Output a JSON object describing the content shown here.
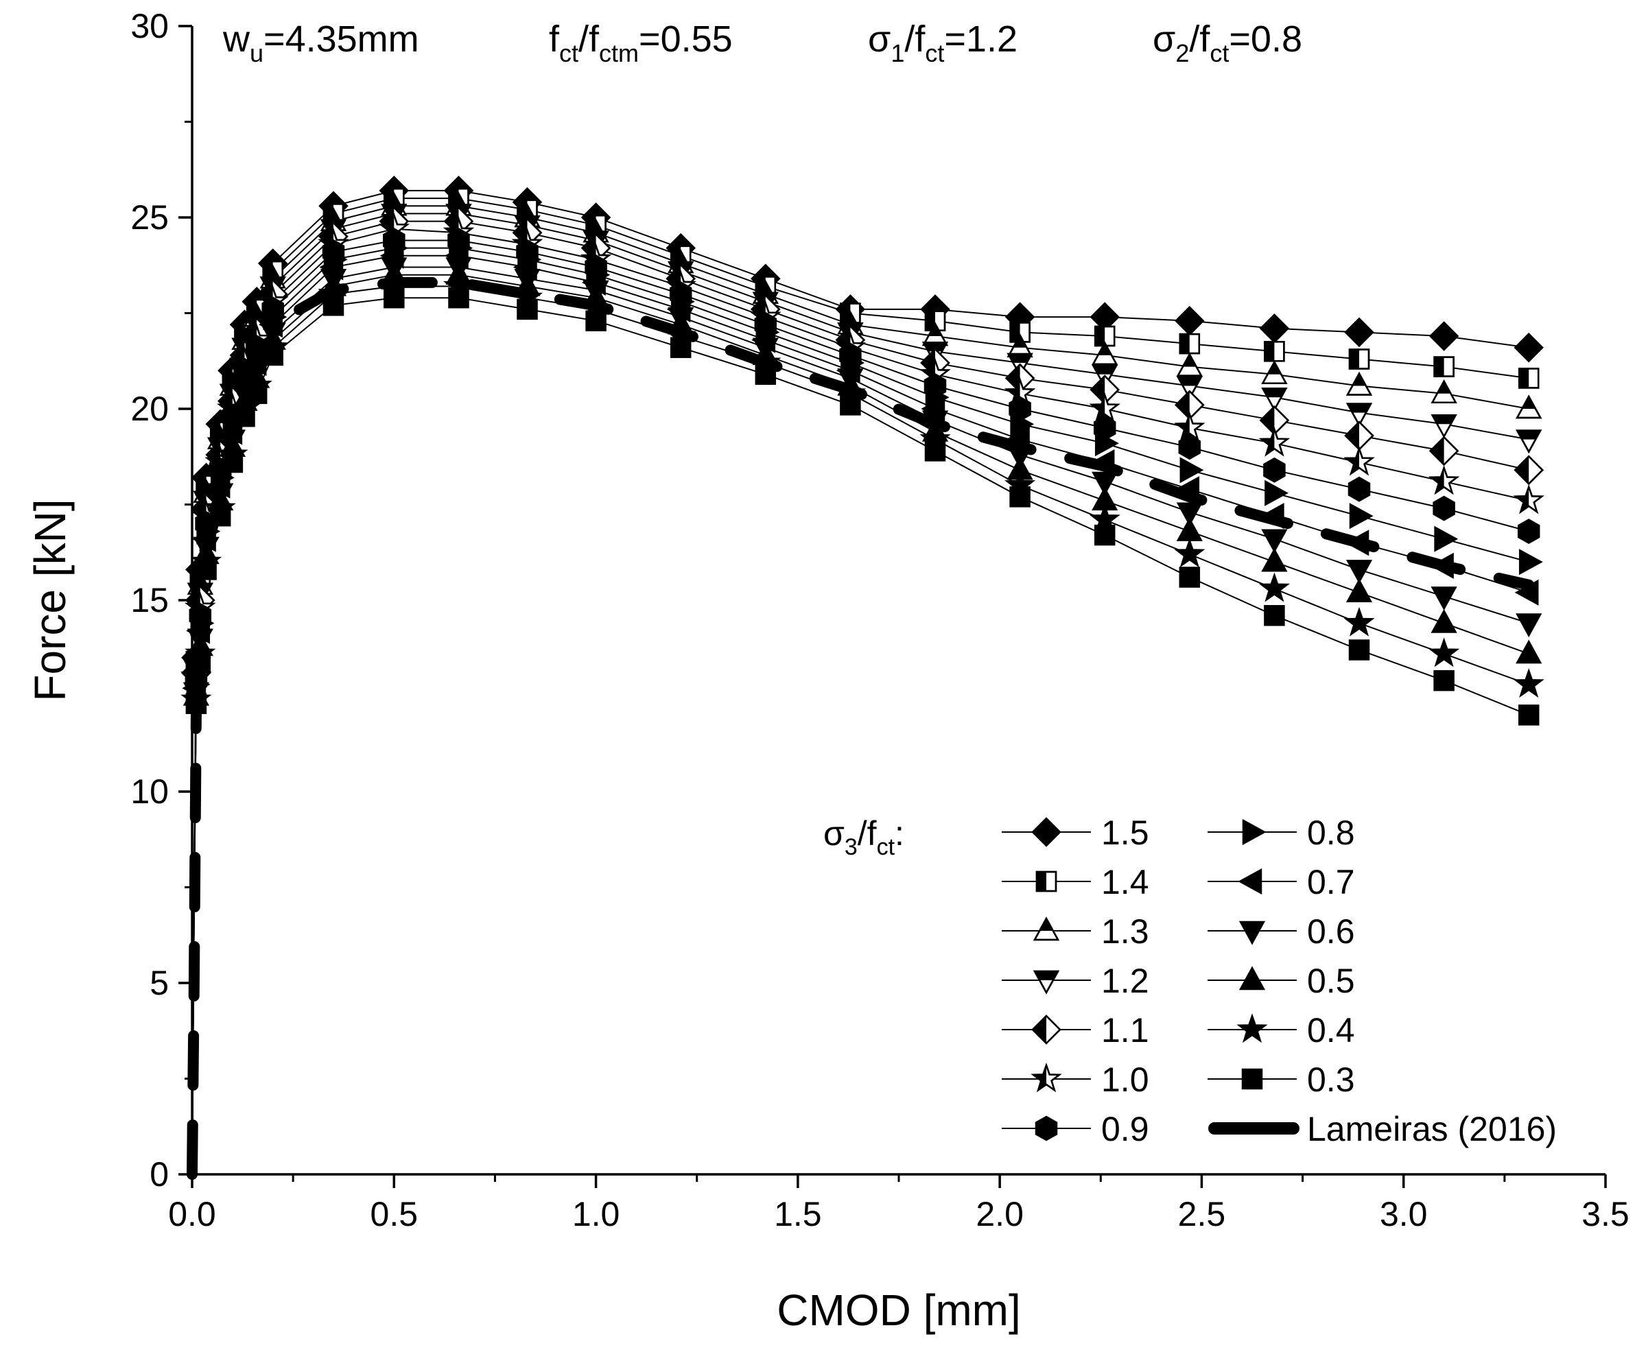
{
  "chart_data": {
    "type": "line",
    "title": "",
    "xlabel": "CMOD [mm]",
    "ylabel": "Force [kN]",
    "xlim": [
      0,
      3.5
    ],
    "ylim": [
      0,
      30
    ],
    "xticks": [
      0.0,
      0.5,
      1.0,
      1.5,
      2.0,
      2.5,
      3.0,
      3.5
    ],
    "xtick_labels": [
      "0.0",
      "0.5",
      "1.0",
      "1.5",
      "2.0",
      "2.5",
      "3.0",
      "3.5"
    ],
    "yticks": [
      0,
      5,
      10,
      15,
      20,
      25,
      30
    ],
    "ytick_labels": [
      "0",
      "5",
      "10",
      "15",
      "20",
      "25",
      "30"
    ],
    "grid": false,
    "legend_position": "bottom-right",
    "legend_title": "σ3/fct:",
    "annotations": [
      {
        "id": "wu",
        "base": "w",
        "sub": "u",
        "rest": "=4.35mm"
      },
      {
        "id": "fct",
        "base": "f",
        "sub": "ct",
        "mid": "/f",
        "sub2": "ctm",
        "rest": "=0.55"
      },
      {
        "id": "s1",
        "base": "σ",
        "sub": "1",
        "mid": "/f",
        "sub2": "ct",
        "rest": "=1.2"
      },
      {
        "id": "s2",
        "base": "σ",
        "sub": "2",
        "mid": "/f",
        "sub2": "ct",
        "rest": "=0.8"
      }
    ],
    "x": [
      0.0,
      0.005,
      0.01,
      0.02,
      0.035,
      0.07,
      0.1,
      0.13,
      0.16,
      0.2,
      0.35,
      0.5,
      0.66,
      0.83,
      1.0,
      1.21,
      1.42,
      1.63,
      1.84,
      2.05,
      2.26,
      2.47,
      2.68,
      2.89,
      3.1,
      3.31
    ],
    "series": [
      {
        "name": "1.5",
        "marker": "diamond-filled",
        "values": [
          0,
          8,
          13.5,
          15.8,
          18.2,
          19.6,
          21.0,
          22.2,
          22.8,
          23.8,
          25.3,
          25.7,
          25.7,
          25.4,
          25.0,
          24.2,
          23.4,
          22.6,
          22.6,
          22.4,
          22.4,
          22.3,
          22.1,
          22.0,
          21.9,
          21.6
        ]
      },
      {
        "name": "1.4",
        "marker": "square-half",
        "values": [
          0,
          7.9,
          13.4,
          15.6,
          18.0,
          19.4,
          20.8,
          22.0,
          22.6,
          23.6,
          25.1,
          25.5,
          25.5,
          25.2,
          24.8,
          24.0,
          23.2,
          22.5,
          22.3,
          22.0,
          21.9,
          21.7,
          21.5,
          21.3,
          21.1,
          20.8
        ]
      },
      {
        "name": "1.3",
        "marker": "triangle-up-half",
        "values": [
          0,
          7.8,
          13.3,
          15.4,
          17.8,
          19.2,
          20.6,
          21.8,
          22.4,
          23.4,
          24.9,
          25.3,
          25.3,
          25.0,
          24.6,
          23.8,
          23.0,
          22.2,
          21.9,
          21.6,
          21.4,
          21.1,
          20.9,
          20.6,
          20.4,
          20.0
        ]
      },
      {
        "name": "1.2",
        "marker": "triangle-down-half",
        "values": [
          0,
          7.7,
          13.2,
          15.2,
          17.6,
          19.0,
          20.4,
          21.6,
          22.2,
          23.2,
          24.7,
          25.1,
          25.1,
          24.8,
          24.4,
          23.6,
          22.8,
          22.0,
          21.5,
          21.2,
          20.9,
          20.6,
          20.3,
          19.9,
          19.6,
          19.2
        ]
      },
      {
        "name": "1.1",
        "marker": "diamond-half",
        "values": [
          0,
          7.6,
          13.1,
          15.0,
          17.4,
          18.8,
          20.2,
          21.4,
          22.0,
          23.0,
          24.5,
          24.9,
          24.9,
          24.6,
          24.2,
          23.4,
          22.6,
          21.8,
          21.2,
          20.8,
          20.5,
          20.1,
          19.7,
          19.3,
          18.9,
          18.4
        ]
      },
      {
        "name": "1.0",
        "marker": "star-half",
        "values": [
          0,
          7.5,
          13.0,
          14.8,
          17.2,
          18.6,
          20.0,
          21.2,
          21.8,
          22.8,
          24.3,
          24.7,
          24.6,
          24.3,
          23.9,
          23.2,
          22.4,
          21.6,
          20.9,
          20.4,
          20.0,
          19.5,
          19.1,
          18.6,
          18.1,
          17.6
        ]
      },
      {
        "name": "0.9",
        "marker": "hexagon-filled",
        "values": [
          0,
          7.4,
          12.9,
          14.6,
          17.0,
          18.4,
          19.8,
          21.0,
          21.6,
          22.6,
          24.1,
          24.4,
          24.4,
          24.1,
          23.7,
          23.0,
          22.2,
          21.4,
          20.6,
          20.0,
          19.5,
          19.0,
          18.4,
          17.9,
          17.4,
          16.8
        ]
      },
      {
        "name": "0.8",
        "marker": "triangle-right-filled",
        "values": [
          0,
          7.3,
          12.8,
          14.4,
          16.8,
          18.2,
          19.6,
          20.8,
          21.4,
          22.4,
          23.9,
          24.2,
          24.2,
          23.9,
          23.5,
          22.8,
          22.0,
          21.2,
          20.3,
          19.6,
          19.1,
          18.4,
          17.8,
          17.2,
          16.6,
          16.0
        ]
      },
      {
        "name": "0.7",
        "marker": "triangle-left-filled",
        "values": [
          0,
          7.2,
          12.7,
          14.2,
          16.6,
          18.0,
          19.4,
          20.6,
          21.2,
          22.2,
          23.7,
          24.0,
          24.0,
          23.7,
          23.3,
          22.6,
          21.8,
          21.0,
          20.0,
          19.2,
          18.6,
          17.9,
          17.2,
          16.5,
          15.9,
          15.2
        ]
      },
      {
        "name": "0.6",
        "marker": "triangle-down-filled",
        "values": [
          0,
          7.1,
          12.6,
          14.0,
          16.4,
          17.8,
          19.2,
          20.4,
          21.0,
          22.0,
          23.4,
          23.7,
          23.7,
          23.4,
          23.1,
          22.4,
          21.6,
          20.8,
          19.7,
          18.8,
          18.1,
          17.3,
          16.6,
          15.8,
          15.1,
          14.4
        ]
      },
      {
        "name": "0.5",
        "marker": "triangle-up-filled",
        "values": [
          0,
          7.0,
          12.5,
          13.8,
          16.2,
          17.6,
          19.0,
          20.2,
          20.8,
          21.8,
          23.2,
          23.5,
          23.5,
          23.2,
          22.9,
          22.2,
          21.4,
          20.6,
          19.4,
          18.4,
          17.6,
          16.8,
          16.0,
          15.2,
          14.4,
          13.6
        ]
      },
      {
        "name": "0.4",
        "marker": "star-filled",
        "values": [
          0,
          6.9,
          12.4,
          13.6,
          16.0,
          17.4,
          18.8,
          20.0,
          20.6,
          21.6,
          23.0,
          23.2,
          23.2,
          22.9,
          22.6,
          21.9,
          21.2,
          20.4,
          19.2,
          18.0,
          17.1,
          16.2,
          15.3,
          14.4,
          13.6,
          12.8
        ]
      },
      {
        "name": "0.3",
        "marker": "square-filled",
        "values": [
          0,
          6.8,
          12.3,
          13.4,
          15.8,
          17.2,
          18.6,
          19.8,
          20.4,
          21.4,
          22.7,
          22.9,
          22.9,
          22.6,
          22.3,
          21.6,
          20.9,
          20.1,
          18.9,
          17.7,
          16.7,
          15.6,
          14.6,
          13.7,
          12.9,
          12.0
        ]
      },
      {
        "name": "Lameiras (2016)",
        "marker": "none",
        "dash": true,
        "values": [
          0,
          5,
          12.0,
          14.2,
          16.9,
          18.2,
          19.5,
          20.6,
          21.2,
          22.2,
          23.1,
          23.3,
          23.3,
          23.0,
          22.7,
          22.0,
          21.2,
          20.5,
          19.6,
          19.0,
          18.5,
          17.7,
          17.1,
          16.5,
          15.9,
          15.4
        ]
      }
    ]
  }
}
